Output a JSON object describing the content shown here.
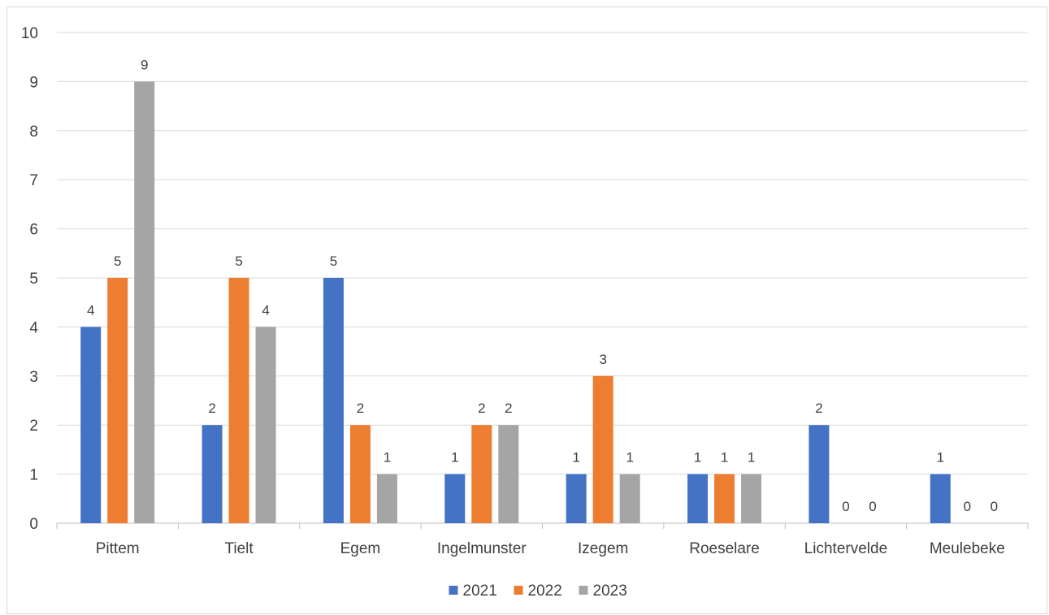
{
  "chart_data": {
    "type": "bar",
    "title": "",
    "xlabel": "",
    "ylabel": "",
    "categories": [
      "Pittem",
      "Tielt",
      "Egem",
      "Ingelmunster",
      "Izegem",
      "Roeselare",
      "Lichtervelde",
      "Meulebeke"
    ],
    "series": [
      {
        "name": "2021",
        "color": "#4472c4",
        "values": [
          4,
          2,
          5,
          1,
          1,
          1,
          2,
          1
        ]
      },
      {
        "name": "2022",
        "color": "#ed7d31",
        "values": [
          5,
          5,
          2,
          2,
          3,
          1,
          0,
          0
        ]
      },
      {
        "name": "2023",
        "color": "#a5a5a5",
        "values": [
          9,
          4,
          1,
          2,
          1,
          1,
          0,
          0
        ]
      }
    ],
    "ylim": [
      0,
      10
    ],
    "yticks": [
      0,
      1,
      2,
      3,
      4,
      5,
      6,
      7,
      8,
      9,
      10
    ],
    "grid": true,
    "data_labels": true,
    "legend_position": "bottom"
  }
}
